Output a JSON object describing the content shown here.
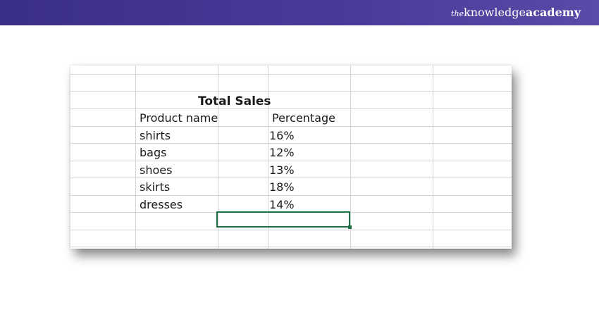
{
  "brand": {
    "prefix": "the",
    "name_light": "knowledge",
    "name_bold": "academy"
  },
  "spreadsheet": {
    "title": "Total Sales",
    "headers": [
      "Product name",
      "Percentage"
    ],
    "rows": [
      {
        "product": "shirts",
        "percentage": "16%"
      },
      {
        "product": "bags",
        "percentage": "12%"
      },
      {
        "product": "shoes",
        "percentage": "13%"
      },
      {
        "product": "skirts",
        "percentage": "18%"
      },
      {
        "product": "dresses",
        "percentage": "14%"
      }
    ]
  },
  "colors": {
    "banner": "#3a2f86",
    "grid_line": "#d4d4d4",
    "selection": "#1e7145"
  }
}
